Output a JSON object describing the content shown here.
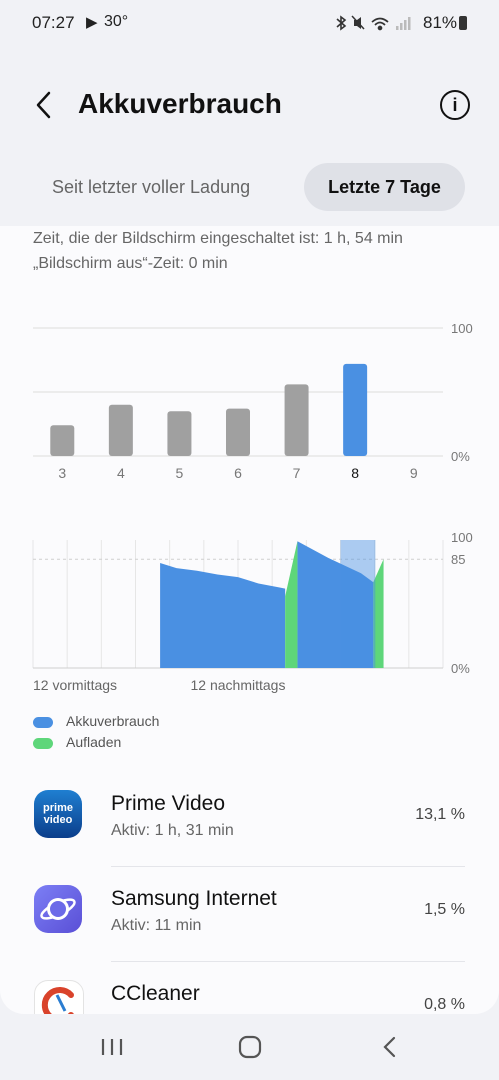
{
  "status_bar": {
    "time": "07:27",
    "temperature": "30°",
    "battery": "81%"
  },
  "header": {
    "title": "Akkuverbrauch"
  },
  "tabs": [
    {
      "label": "Seit letzter voller Ladung"
    },
    {
      "label": "Letzte 7 Tage"
    }
  ],
  "screen_on_text": "Zeit, die der Bildschirm eingeschaltet ist: 1 h, 54 min",
  "screen_off_text": "„Bildschirm aus“-Zeit: 0 min",
  "chart_data": [
    {
      "type": "bar",
      "categories": [
        "3",
        "4",
        "5",
        "6",
        "7",
        "8",
        "9"
      ],
      "values": [
        24,
        40,
        35,
        37,
        56,
        72,
        0
      ],
      "ylim": [
        0,
        100
      ],
      "y_tick_labels": [
        "100",
        "0%"
      ],
      "highlighted_category": "8",
      "colors": {
        "default": "#a0a0a0",
        "highlight": "#4a90e2"
      }
    },
    {
      "type": "area",
      "x_labels": [
        "12 vormittags",
        "12 nachmittags"
      ],
      "y_tick_labels": [
        "100",
        "85",
        "0%"
      ],
      "ylim": [
        0,
        100
      ],
      "legend": [
        "Akkuverbrauch",
        "Aufladen"
      ],
      "colors": {
        "usage": "#4a90e2",
        "charging": "#5ed67a"
      }
    }
  ],
  "apps": [
    {
      "name": "Prime Video",
      "sub": "Aktiv: 1 h, 31 min",
      "percent": "13,1 %",
      "icon": "prime-video-icon",
      "icon_text_1": "prime",
      "icon_text_2": "video"
    },
    {
      "name": "Samsung Internet",
      "sub": "Aktiv: 11 min",
      "percent": "1,5 %",
      "icon": "samsung-internet-icon"
    },
    {
      "name": "CCleaner",
      "sub": "",
      "percent": "0,8 %",
      "icon": "ccleaner-icon"
    }
  ]
}
